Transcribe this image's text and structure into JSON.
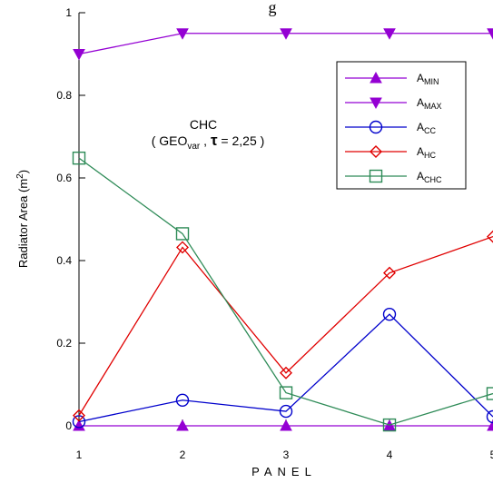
{
  "chart_data": {
    "type": "line",
    "title": "g",
    "xlabel": "PANEL",
    "ylabel": "Radiator Area (m²)",
    "annotation": {
      "line1": "CHC",
      "line2": "( GEOvar , τ = 2,25 )"
    },
    "x": [
      1,
      2,
      3,
      4,
      5
    ],
    "xlim": [
      1,
      5
    ],
    "ylim": [
      0,
      1
    ],
    "xticks": [
      "1",
      "2",
      "3",
      "4",
      "5"
    ],
    "yticks": [
      "0",
      "0.2",
      "0.4",
      "0.6",
      "0.8",
      "1"
    ],
    "grid": false,
    "legend_position": "top-right",
    "series": [
      {
        "name": "A_MIN",
        "color": "#9400d3",
        "marker": "triangle-up",
        "values": [
          0,
          0,
          0,
          0,
          0
        ]
      },
      {
        "name": "A_MAX",
        "color": "#9400d3",
        "marker": "triangle-down",
        "values": [
          0.9,
          0.95,
          0.95,
          0.95,
          0.95
        ]
      },
      {
        "name": "A_CC",
        "color": "#0000cc",
        "marker": "circle",
        "values": [
          0.01,
          0.062,
          0.035,
          0.27,
          0.022
        ]
      },
      {
        "name": "A_HC",
        "color": "#e00000",
        "marker": "diamond",
        "values": [
          0.025,
          0.432,
          0.128,
          0.37,
          0.458
        ]
      },
      {
        "name": "A_CHC",
        "color": "#2e8b57",
        "marker": "square",
        "values": [
          0.648,
          0.465,
          0.08,
          0.002,
          0.078
        ]
      }
    ]
  }
}
